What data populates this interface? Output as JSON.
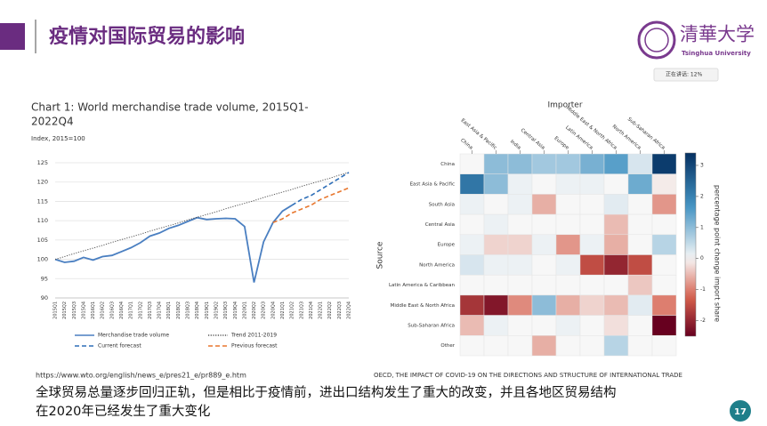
{
  "header": {
    "title": "疫情对国际贸易的影响"
  },
  "logo": {
    "name": "清華大学",
    "english": "Tsinghua University"
  },
  "status": "正在讲话: 12%",
  "chart_data": [
    {
      "type": "line",
      "title": [
        "Chart 1: World merchandise trade volume, 2015Q1-",
        "2022Q4"
      ],
      "subtitle": "Index, 2015=100",
      "categories": [
        "2015Q1",
        "2015Q2",
        "2015Q3",
        "2015Q4",
        "2016Q1",
        "2016Q2",
        "2016Q3",
        "2016Q4",
        "2017Q1",
        "2017Q2",
        "2017Q3",
        "2017Q4",
        "2018Q1",
        "2018Q2",
        "2018Q3",
        "2018Q4",
        "2019Q1",
        "2019Q2",
        "2019Q3",
        "2019Q4",
        "2020Q1",
        "2020Q2",
        "2020Q3",
        "2020Q4",
        "2021Q1",
        "2021Q2",
        "2021Q3",
        "2021Q4",
        "2022Q1",
        "2022Q2",
        "2022Q3",
        "2022Q4"
      ],
      "series": [
        {
          "name": "Merchandise trade volume",
          "color": "#4a7fc1",
          "style": "solid",
          "values": [
            100,
            99.2,
            99.5,
            100.5,
            99.8,
            100.7,
            101,
            102,
            103,
            104.3,
            106,
            106.8,
            108,
            108.8,
            109.8,
            110.8,
            110.3,
            110.5,
            110.6,
            110.5,
            108.5,
            94,
            104.5,
            109.5,
            112.5,
            114,
            null,
            null,
            null,
            null,
            null,
            null
          ]
        },
        {
          "name": "Trend 2011-2019",
          "color": "#555555",
          "style": "dotted",
          "values": [
            100,
            100.7,
            101.5,
            102.2,
            102.9,
            103.6,
            104.4,
            105.1,
            105.8,
            106.5,
            107.3,
            108,
            108.7,
            109.4,
            110.2,
            110.9,
            111.6,
            112.3,
            113.1,
            113.8,
            114.5,
            115.2,
            116,
            116.7,
            117.4,
            118.1,
            118.9,
            119.6,
            120.3,
            121,
            121.8,
            122.5
          ]
        },
        {
          "name": "Current forecast",
          "color": "#2f6fb8",
          "style": "dashed",
          "values": [
            null,
            null,
            null,
            null,
            null,
            null,
            null,
            null,
            null,
            null,
            null,
            null,
            null,
            null,
            null,
            null,
            null,
            null,
            null,
            null,
            null,
            null,
            null,
            null,
            null,
            114,
            115.5,
            116.5,
            118,
            119.5,
            121,
            122.5
          ]
        },
        {
          "name": "Previous forecast",
          "color": "#e8772e",
          "style": "dashed",
          "values": [
            null,
            null,
            null,
            null,
            null,
            null,
            null,
            null,
            null,
            null,
            null,
            null,
            null,
            null,
            null,
            null,
            null,
            null,
            null,
            null,
            null,
            null,
            null,
            109.5,
            110.5,
            112,
            113,
            114,
            115.5,
            116.5,
            117.5,
            118.5
          ]
        }
      ],
      "ylim": [
        90,
        125
      ],
      "yticks": [
        90,
        95,
        100,
        105,
        110,
        115,
        120,
        125
      ],
      "grid": true
    },
    {
      "type": "heatmap",
      "xlabel": "Importer",
      "ylabel": "Source",
      "colorbar_label": "percentage point change import share",
      "x_categories": [
        "China",
        "East Asia & Pacific",
        "India",
        "Central Asia",
        "Europe",
        "Latin America",
        "Middle East & North Africa",
        "North America",
        "Sub-Saharan Africa"
      ],
      "y_categories": [
        "China",
        "East Asia & Pacific",
        "South Asia",
        "Central Asia",
        "Europe",
        "North America",
        "Latin America & Caribbean",
        "Middle East & North Africa",
        "Sub-Saharan Africa",
        "Other"
      ],
      "values": [
        [
          0,
          1,
          1,
          0.8,
          0.8,
          1.2,
          1.5,
          0.3,
          3.2
        ],
        [
          2.2,
          1,
          0.1,
          0,
          0.1,
          0.1,
          0,
          1.3,
          -0.1
        ],
        [
          0.1,
          0,
          0.1,
          -0.6,
          0,
          0,
          0.2,
          0,
          -0.8
        ],
        [
          0,
          0.1,
          0,
          0,
          0,
          0,
          -0.5,
          0,
          0
        ],
        [
          0.1,
          -0.3,
          -0.3,
          0.1,
          -0.8,
          0.1,
          -0.6,
          0,
          0.6
        ],
        [
          0.3,
          0.1,
          0.1,
          0,
          0.1,
          -1.5,
          -2,
          -1.5,
          0
        ],
        [
          0,
          0,
          0,
          0,
          0,
          0,
          0,
          -0.4,
          0
        ],
        [
          -1.8,
          -2.2,
          -0.9,
          1,
          -0.6,
          -0.3,
          -0.5,
          0.2,
          -1
        ],
        [
          -0.5,
          0.1,
          0,
          0,
          0.1,
          0,
          -0.2,
          0,
          -2.5
        ],
        [
          0,
          0,
          0,
          -0.6,
          0,
          0,
          0.6,
          0,
          0
        ]
      ],
      "zlim": [
        -2.5,
        3.4
      ],
      "zticks": [
        -2,
        -1,
        0,
        1,
        2,
        3
      ]
    }
  ],
  "sources": [
    "https://www.wto.org/english/news_e/pres21_e/pr889_e.htm",
    "OECD, THE IMPACT OF COVID-19 ON THE DIRECTIONS AND STRUCTURE OF INTERNATIONAL TRADE"
  ],
  "body": [
    "全球贸易总量逐步回归正轨，但是相比于疫情前，进出口结构发生了重大的改变，并且各地区贸易结构",
    "在2020年已经发生了重大变化"
  ],
  "page_number": "17"
}
